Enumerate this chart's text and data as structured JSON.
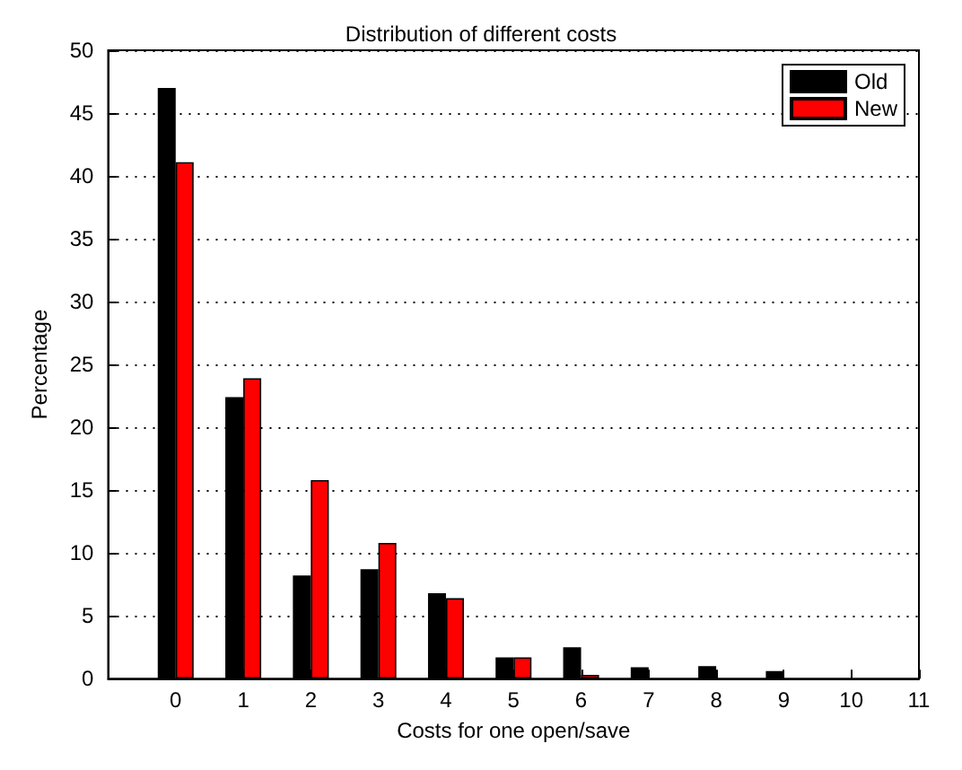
{
  "chart_data": {
    "type": "bar",
    "title": "Distribution of different costs",
    "xlabel": "Costs for one open/save",
    "ylabel": "Percentage",
    "x": [
      0,
      1,
      2,
      3,
      4,
      5,
      6,
      7,
      8,
      9
    ],
    "series": [
      {
        "name": "Old",
        "color": "#000000",
        "values": [
          47,
          22.4,
          8.2,
          8.7,
          6.8,
          1.7,
          2.5,
          0.9,
          1.0,
          0.6
        ]
      },
      {
        "name": "New",
        "color": "#ff0000",
        "values": [
          41.1,
          23.9,
          15.8,
          10.8,
          6.4,
          1.7,
          0.3,
          null,
          null,
          null
        ]
      }
    ],
    "xlim": [
      -1,
      11
    ],
    "xticks": [
      0,
      1,
      2,
      3,
      4,
      5,
      6,
      7,
      8,
      9,
      10,
      11
    ],
    "ylim": [
      0,
      50
    ],
    "yticks": [
      0,
      5,
      10,
      15,
      20,
      25,
      30,
      35,
      40,
      45,
      50
    ],
    "grid": "y",
    "legend": "top right"
  }
}
